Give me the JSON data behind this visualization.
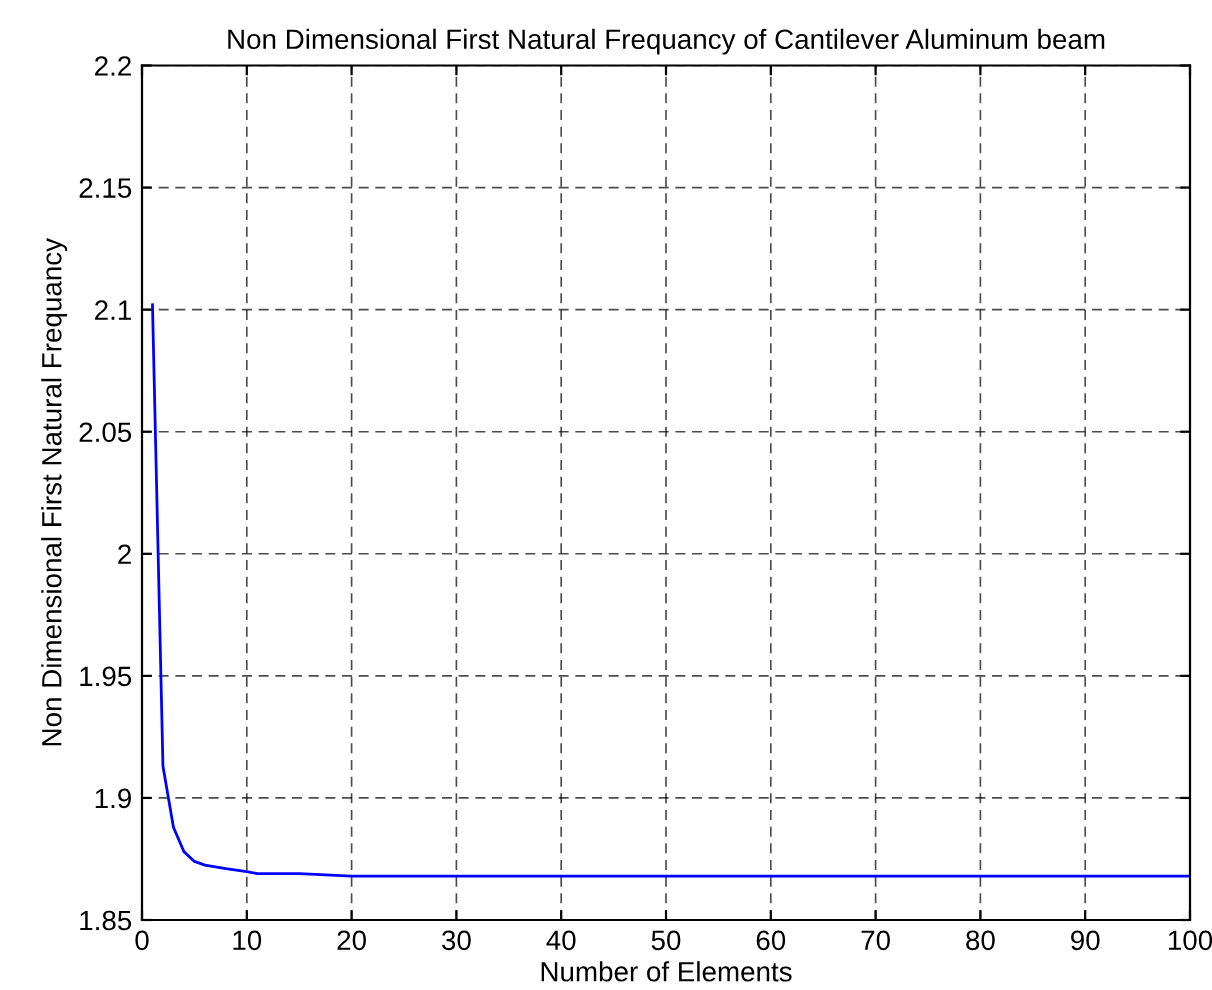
{
  "chart_data": {
    "type": "line",
    "title": "Non Dimensional First Natural Frequancy of Cantilever Aluminum beam",
    "xlabel": "Number of Elements",
    "ylabel": "Non Dimensional First Natural Frequancy",
    "series": [
      {
        "color": "#0000ff",
        "x": [
          1,
          2,
          3,
          4,
          5,
          6,
          8,
          10,
          11,
          15,
          20,
          30,
          50,
          100
        ],
        "values": [
          2.102,
          1.913,
          1.888,
          1.878,
          1.874,
          1.8725,
          1.871,
          1.8698,
          1.869,
          1.869,
          1.868,
          1.868,
          1.868,
          1.868
        ]
      }
    ],
    "xlim": [
      0,
      100
    ],
    "ylim": [
      1.85,
      2.2
    ],
    "xticks": [
      0,
      10,
      20,
      30,
      40,
      50,
      60,
      70,
      80,
      90,
      100
    ],
    "yticks": [
      1.85,
      1.9,
      1.95,
      2,
      2.05,
      2.1,
      2.15,
      2.2
    ],
    "grid": true,
    "line_style": "solid",
    "marker": "none"
  }
}
